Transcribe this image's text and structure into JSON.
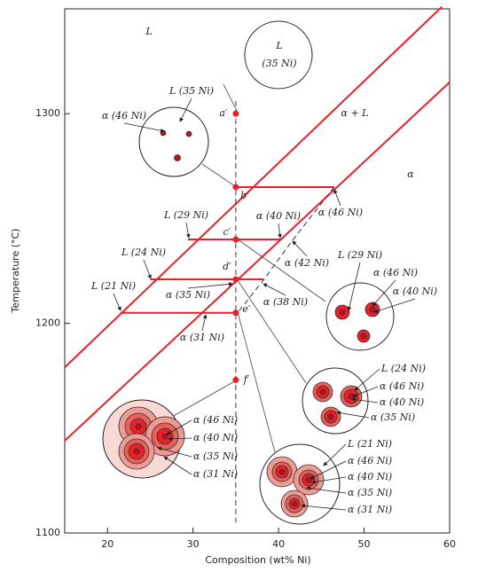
{
  "chart_data": {
    "type": "line",
    "x_label": "Composition (wt% Ni)",
    "y_label": "Temperature (°C)",
    "xlim": [
      15,
      60
    ],
    "ylim": [
      1100,
      1350
    ],
    "xticks": [
      20,
      30,
      40,
      50,
      60
    ],
    "yticks": [
      1100,
      1200,
      1300
    ],
    "series": [
      {
        "x": [
          15,
          59.1
        ],
        "values": [
          1179,
          1351
        ],
        "color": "#e8202a",
        "dashed": false
      },
      {
        "x": [
          15,
          60
        ],
        "values": [
          1144,
          1315
        ],
        "color": "#e8202a",
        "dashed": false
      },
      {
        "x": [
          35,
          46.5
        ],
        "values": [
          1265,
          1265
        ],
        "color": "#e8202a",
        "dashed": false
      },
      {
        "x": [
          29.4,
          40.4
        ],
        "values": [
          1240,
          1240
        ],
        "color": "#e8202a",
        "dashed": false
      },
      {
        "x": [
          25,
          38.2
        ],
        "values": [
          1221,
          1221
        ],
        "color": "#e8202a",
        "dashed": false
      },
      {
        "x": [
          21.5,
          35
        ],
        "values": [
          1205,
          1205
        ],
        "color": "#e8202a",
        "dashed": false
      },
      {
        "x": [
          46.5,
          41.7,
          38.3,
          35.2
        ],
        "values": [
          1265,
          1240,
          1221,
          1205
        ],
        "color": "#333333",
        "dashed": true
      },
      {
        "x": [
          35,
          35
        ],
        "values": [
          1306,
          1105
        ],
        "color": "#333333",
        "dashed": true
      }
    ],
    "points": {
      "labels": [
        "a′",
        "b′",
        "c′",
        "d′",
        "e′",
        "f′"
      ],
      "x": [
        35,
        35,
        35,
        35,
        35,
        35
      ],
      "values": [
        1300,
        1265,
        1240,
        1221,
        1205,
        1173
      ],
      "color": "#e8202a"
    },
    "annotations": [
      "L",
      "α + L",
      "α",
      "L",
      "(35 Ni)",
      "α (46 Ni)",
      "L (35 Ni)",
      "L (29 Ni)",
      "α (40 Ni)",
      "α (46 Ni)",
      "L (24 Ni)",
      "α (42 Ni)",
      "L (21 Ni)",
      "α (35 Ni)",
      "α (38 Ni)",
      "α (31 Ni)",
      "L (29 Ni)",
      "α (46 Ni)",
      "α (40 Ni)",
      "L (24 Ni)",
      "α (46 Ni)",
      "α (40 Ni)",
      "α (35 Ni)",
      "α (46 Ni)",
      "α (40 Ni)",
      "α (35 Ni)",
      "α (31 Ni)",
      "L (21 Ni)",
      "α (46 Ni)",
      "α (40 Ni)",
      "α (35 Ni)",
      "α (31 Ni)"
    ]
  }
}
